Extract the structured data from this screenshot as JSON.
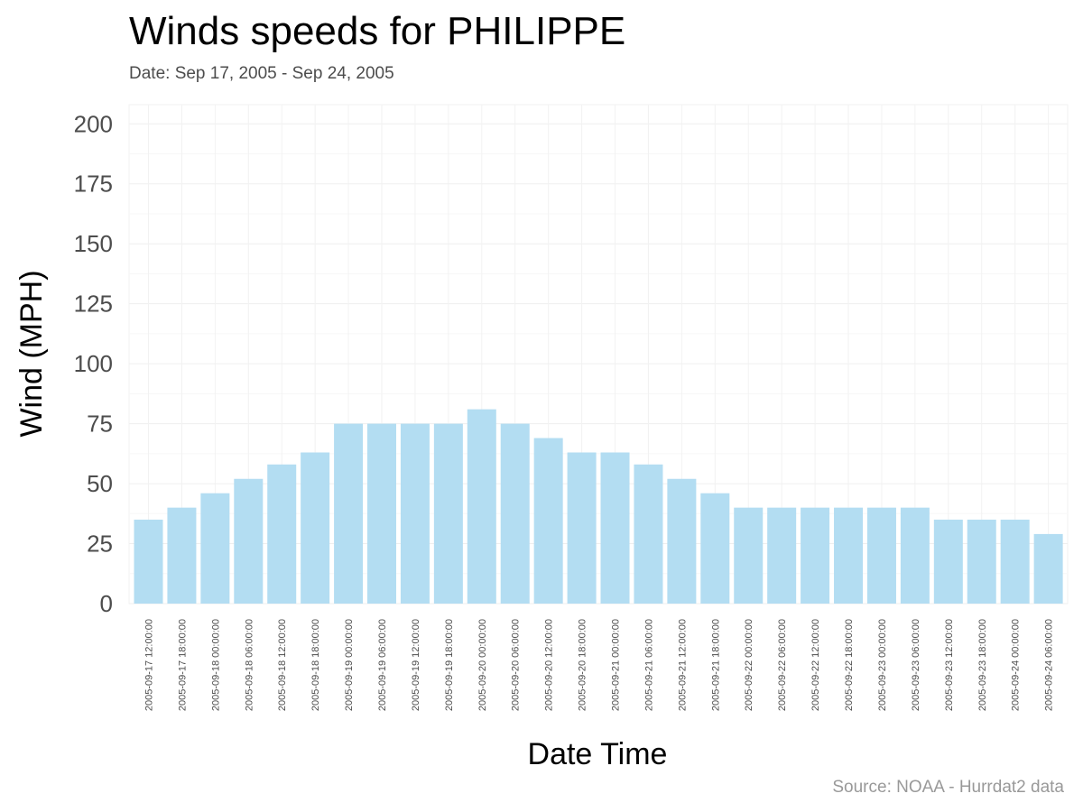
{
  "chart_data": {
    "type": "bar",
    "title": "Winds speeds for PHILIPPE",
    "subtitle": "Date:  Sep 17, 2005 - Sep 24, 2005",
    "caption": "Source: NOAA - Hurrdat2 data",
    "xlabel": "Date Time",
    "ylabel": "Wind (MPH)",
    "ylim": [
      0,
      208
    ],
    "yticks": [
      0,
      25,
      50,
      75,
      100,
      125,
      150,
      175,
      200
    ],
    "grid": true,
    "bar_color": "#b3ddf2",
    "categories": [
      "2005-09-17 12:00:00",
      "2005-09-17 18:00:00",
      "2005-09-18 00:00:00",
      "2005-09-18 06:00:00",
      "2005-09-18 12:00:00",
      "2005-09-18 18:00:00",
      "2005-09-19 00:00:00",
      "2005-09-19 06:00:00",
      "2005-09-19 12:00:00",
      "2005-09-19 18:00:00",
      "2005-09-20 00:00:00",
      "2005-09-20 06:00:00",
      "2005-09-20 12:00:00",
      "2005-09-20 18:00:00",
      "2005-09-21 00:00:00",
      "2005-09-21 06:00:00",
      "2005-09-21 12:00:00",
      "2005-09-21 18:00:00",
      "2005-09-22 00:00:00",
      "2005-09-22 06:00:00",
      "2005-09-22 12:00:00",
      "2005-09-22 18:00:00",
      "2005-09-23 00:00:00",
      "2005-09-23 06:00:00",
      "2005-09-23 12:00:00",
      "2005-09-23 18:00:00",
      "2005-09-24 00:00:00",
      "2005-09-24 06:00:00"
    ],
    "values": [
      35,
      40,
      46,
      52,
      58,
      63,
      75,
      75,
      75,
      75,
      81,
      75,
      69,
      63,
      63,
      58,
      52,
      46,
      40,
      40,
      40,
      40,
      40,
      40,
      35,
      35,
      35,
      29
    ]
  }
}
